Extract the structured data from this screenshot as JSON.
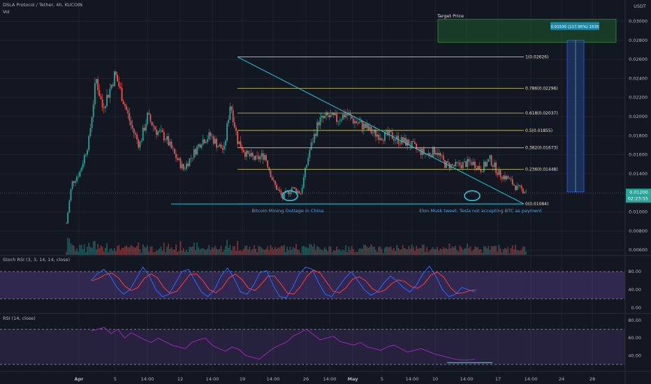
{
  "header": {
    "symbol_line": "DSLA Protocol / Tether, 4h, KUCOIN",
    "vol_label": "Vol",
    "quote_currency": "USDT"
  },
  "price_axis": {
    "ticks": [
      "0.03000",
      "0.02800",
      "0.02600",
      "0.02400",
      "0.02200",
      "0.02000",
      "0.01800",
      "0.01600",
      "0.01400",
      "0.01000",
      "0.00800",
      "0.00600"
    ],
    "current_price": "0.01200",
    "countdown": "02:23:55",
    "current_color": "#26a69a"
  },
  "time_axis": [
    "Apr",
    "5",
    "14:00",
    "12",
    "14:00",
    "19",
    "14:00",
    "26",
    "14:00",
    "May",
    "5",
    "14:00",
    "10",
    "14:00",
    "17",
    "14:00",
    "24",
    "28"
  ],
  "fib_levels": [
    {
      "ratio": "1",
      "price": 0.02626,
      "label": "1(0.02626)"
    },
    {
      "ratio": "0.786",
      "price": 0.02296,
      "label": "0.786(0.02296)"
    },
    {
      "ratio": "0.618",
      "price": 0.02037,
      "label": "0.618(0.02037)"
    },
    {
      "ratio": "0.5",
      "price": 0.01855,
      "label": "0.5(0.01855)"
    },
    {
      "ratio": "0.382",
      "price": 0.01673,
      "label": "0.382(0.01673)"
    },
    {
      "ratio": "0.236",
      "price": 0.01448,
      "label": "0.236(0.01448)"
    },
    {
      "ratio": "0",
      "price": 0.01084,
      "label": "0(0.01084)"
    }
  ],
  "annotations": {
    "target_title": "Target Price",
    "target_box_label": "0.01535 (117.95%) 1535",
    "bitcoin_note": "Bitcoin Mining Outtage in China",
    "musk_note": "Elon Musk tweet: Tesla not accepting BTC as payment"
  },
  "stoch_rsi": {
    "label": "Stoch RSI (3, 3, 14, 14, close)",
    "ticks": [
      "80.00",
      "40.00",
      "0.00"
    ],
    "k_color": "#2962ff",
    "d_color": "#f23645",
    "band_color": "#7e57c2"
  },
  "rsi": {
    "label": "RSI (14, close)",
    "ticks": [
      "80.00",
      "60.00",
      "40.00"
    ],
    "line_color": "#9c27b0"
  },
  "colors": {
    "up": "#26a69a",
    "down": "#ef5350",
    "fib": "#d4cf6a",
    "trend": "#26c6da",
    "target_fill": "#1e5a2c",
    "projection": "#1e3a66"
  },
  "chart_data": {
    "type": "candlestick",
    "ylim": [
      0.0055,
      0.0315
    ],
    "x_range_days": 62,
    "close_path": [
      {
        "day": 0.0,
        "price": 0.0088
      },
      {
        "day": 0.6,
        "price": 0.013
      },
      {
        "day": 1.5,
        "price": 0.0142
      },
      {
        "day": 2.5,
        "price": 0.0175
      },
      {
        "day": 3.3,
        "price": 0.024
      },
      {
        "day": 4.0,
        "price": 0.021
      },
      {
        "day": 4.7,
        "price": 0.0225
      },
      {
        "day": 5.4,
        "price": 0.0245
      },
      {
        "day": 6.3,
        "price": 0.0218
      },
      {
        "day": 7.2,
        "price": 0.019
      },
      {
        "day": 8.1,
        "price": 0.017
      },
      {
        "day": 9.0,
        "price": 0.02
      },
      {
        "day": 10.0,
        "price": 0.0185
      },
      {
        "day": 11.0,
        "price": 0.0178
      },
      {
        "day": 12.0,
        "price": 0.016
      },
      {
        "day": 13.0,
        "price": 0.0145
      },
      {
        "day": 14.0,
        "price": 0.016
      },
      {
        "day": 15.0,
        "price": 0.0175
      },
      {
        "day": 16.0,
        "price": 0.018
      },
      {
        "day": 16.8,
        "price": 0.017
      },
      {
        "day": 17.5,
        "price": 0.0165
      },
      {
        "day": 18.2,
        "price": 0.0215
      },
      {
        "day": 19.0,
        "price": 0.0175
      },
      {
        "day": 20.0,
        "price": 0.016
      },
      {
        "day": 21.0,
        "price": 0.0155
      },
      {
        "day": 22.0,
        "price": 0.016
      },
      {
        "day": 23.0,
        "price": 0.013
      },
      {
        "day": 24.0,
        "price": 0.0115
      },
      {
        "day": 25.0,
        "price": 0.0125
      },
      {
        "day": 26.0,
        "price": 0.012
      },
      {
        "day": 27.0,
        "price": 0.0165
      },
      {
        "day": 28.0,
        "price": 0.0195
      },
      {
        "day": 29.0,
        "price": 0.02
      },
      {
        "day": 30.0,
        "price": 0.0197
      },
      {
        "day": 31.0,
        "price": 0.0203
      },
      {
        "day": 32.0,
        "price": 0.0195
      },
      {
        "day": 33.0,
        "price": 0.019
      },
      {
        "day": 34.0,
        "price": 0.0183
      },
      {
        "day": 35.0,
        "price": 0.018
      },
      {
        "day": 36.0,
        "price": 0.018
      },
      {
        "day": 37.0,
        "price": 0.0175
      },
      {
        "day": 38.0,
        "price": 0.0172
      },
      {
        "day": 39.0,
        "price": 0.0165
      },
      {
        "day": 40.0,
        "price": 0.016
      },
      {
        "day": 41.0,
        "price": 0.0165
      },
      {
        "day": 42.0,
        "price": 0.015
      },
      {
        "day": 43.0,
        "price": 0.0148
      },
      {
        "day": 44.0,
        "price": 0.015
      },
      {
        "day": 45.0,
        "price": 0.0152
      },
      {
        "day": 46.0,
        "price": 0.0145
      },
      {
        "day": 47.0,
        "price": 0.0155
      },
      {
        "day": 48.0,
        "price": 0.014
      },
      {
        "day": 49.0,
        "price": 0.0135
      },
      {
        "day": 50.0,
        "price": 0.0125
      },
      {
        "day": 51.0,
        "price": 0.0122
      }
    ],
    "stoch_k": [
      60,
      75,
      85,
      70,
      45,
      30,
      40,
      65,
      90,
      70,
      40,
      25,
      30,
      55,
      80,
      85,
      60,
      35,
      25,
      40,
      70,
      88,
      65,
      35,
      30,
      50,
      78,
      82,
      50,
      25,
      22,
      45,
      75,
      90,
      85,
      55,
      30,
      25,
      45,
      65,
      80,
      60,
      40,
      28,
      35,
      55,
      70,
      60,
      45,
      35,
      50,
      75,
      92,
      70,
      40,
      25,
      30,
      45,
      40,
      35
    ],
    "rsi_values": [
      68,
      70,
      72,
      65,
      70,
      60,
      66,
      62,
      58,
      55,
      60,
      56,
      52,
      50,
      48,
      55,
      58,
      60,
      52,
      48,
      45,
      50,
      47,
      40,
      38,
      36,
      42,
      48,
      52,
      55,
      62,
      66,
      70,
      64,
      58,
      60,
      62,
      56,
      54,
      52,
      55,
      50,
      48,
      46,
      50,
      52,
      48,
      44,
      46,
      48,
      45,
      42,
      40,
      38,
      36,
      35,
      35,
      36
    ]
  }
}
